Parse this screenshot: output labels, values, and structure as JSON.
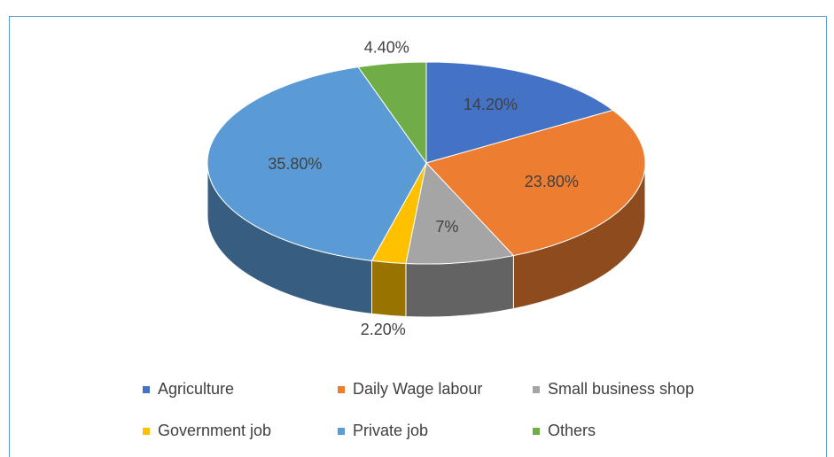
{
  "chart_data": {
    "type": "pie3d",
    "categories": [
      "Agriculture",
      "Daily Wage labour",
      "Small business shop",
      "Government job",
      "Private job",
      "Others"
    ],
    "values": [
      14.2,
      23.8,
      7,
      2.2,
      35.8,
      4.4
    ],
    "value_labels": [
      "14.20%",
      "23.80%",
      "7%",
      "2.20%",
      "35.80%",
      "4.40%"
    ],
    "colors": [
      "#4472c4",
      "#ed7d31",
      "#a5a5a5",
      "#ffc000",
      "#5b9bd5",
      "#70ad47"
    ],
    "legend": "bottom"
  }
}
